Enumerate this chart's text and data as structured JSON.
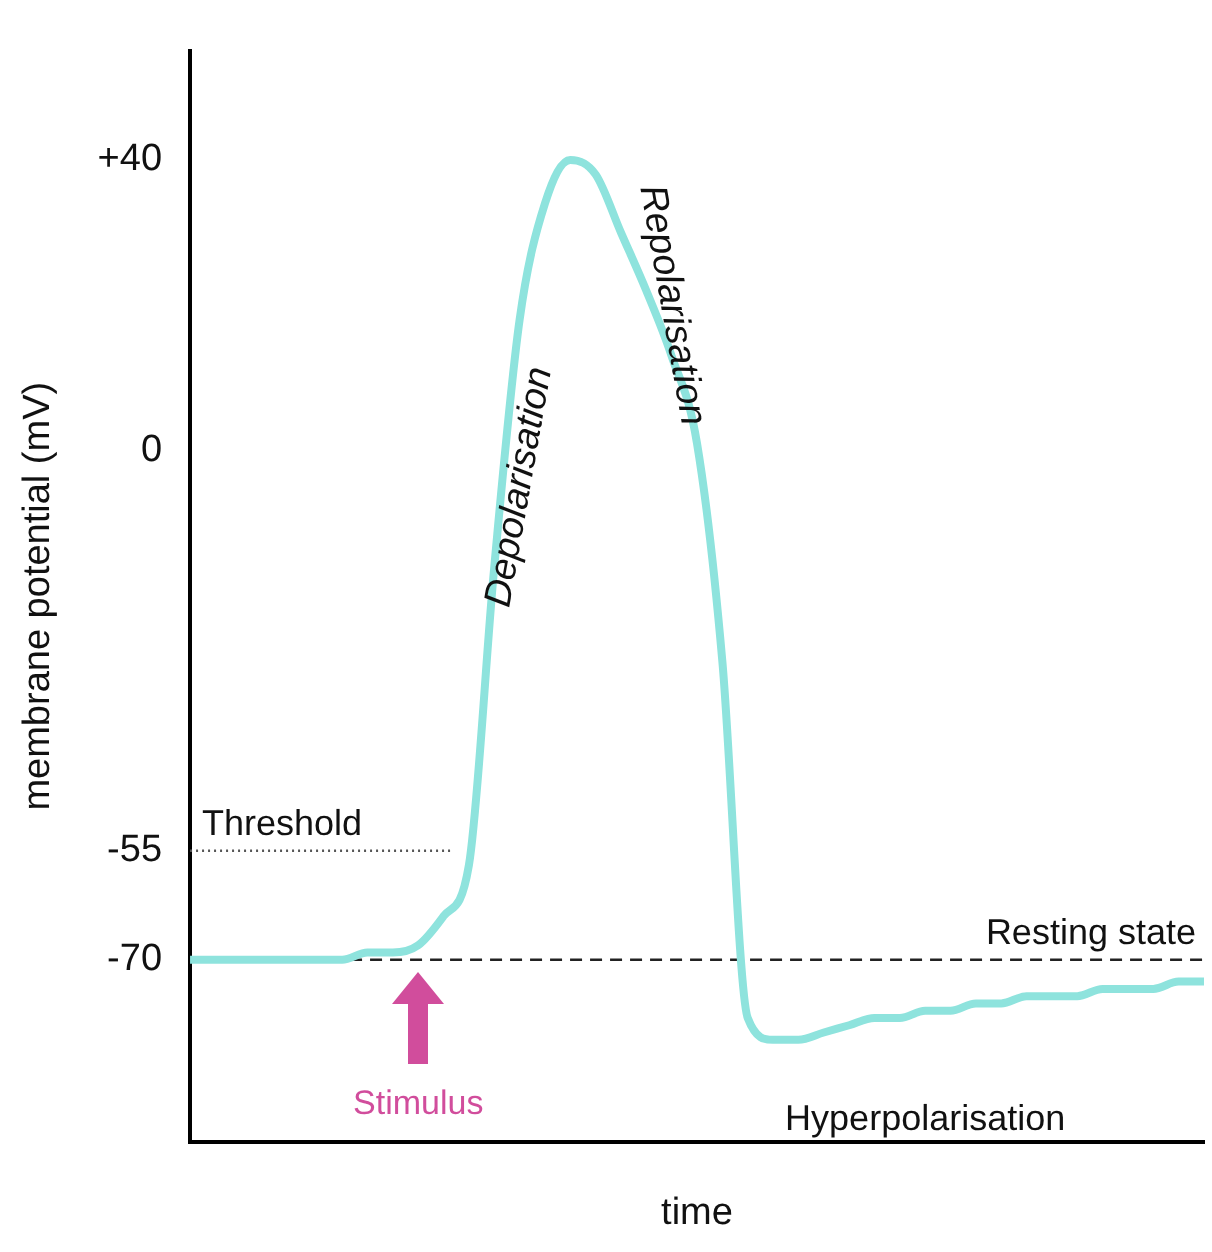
{
  "chart_data": {
    "type": "line",
    "xlabel": "time",
    "ylabel": "membrane potential (mV)",
    "categories": [
      null,
      null,
      null,
      null,
      null,
      null,
      null,
      null,
      null,
      null,
      null,
      null,
      null,
      null,
      null,
      null,
      null,
      null,
      null,
      null,
      null,
      null,
      null,
      null,
      null,
      null,
      null,
      null,
      null,
      null,
      null,
      null,
      null,
      null,
      null,
      null,
      null,
      null,
      null,
      null,
      null
    ],
    "series": [
      {
        "color": "#8ee3dd",
        "values": [
          -70,
          -70,
          -70,
          -70,
          -70,
          -70,
          -70,
          -69,
          -69,
          -68,
          -64,
          -57,
          -16,
          18,
          34,
          40,
          38,
          30,
          22,
          13,
          1,
          -29,
          -78,
          -81,
          -81,
          -80,
          -79,
          -78,
          -78,
          -77,
          -77,
          -76,
          -76,
          -75,
          -75,
          -75,
          -74,
          -74,
          -74,
          -73,
          -73
        ]
      }
    ],
    "ylim": [
      -95,
      55
    ],
    "yticks": [
      {
        "value": 40,
        "label": "+40"
      },
      0,
      -55,
      -70
    ],
    "ref_lines": [
      {
        "axis": "y",
        "value": -55,
        "label": "Threshold",
        "line_style": "dotted",
        "color": "#555555"
      },
      {
        "axis": "y",
        "value": -70,
        "label": "Resting state",
        "line_style": "dashed",
        "color": "#222222"
      }
    ],
    "annotations": [
      "Depolarisation",
      "Repolarisation",
      "Hyperpolarisation",
      "Stimulus"
    ],
    "grid": false,
    "legend": false,
    "marker": "none",
    "line_style": "solid"
  }
}
